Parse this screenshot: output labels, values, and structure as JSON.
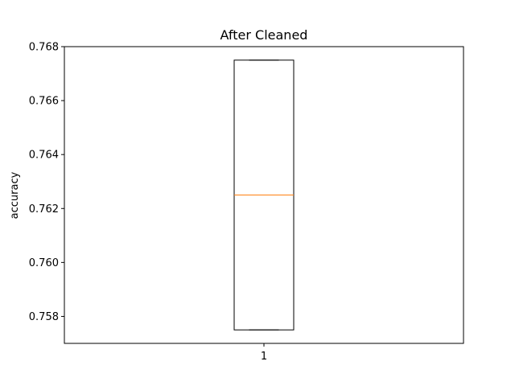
{
  "chart_data": {
    "type": "box",
    "title": "After Cleaned",
    "xlabel": "",
    "ylabel": "accuracy",
    "categories": [
      "1"
    ],
    "boxes": [
      {
        "category": "1",
        "whisker_low": 0.7575,
        "q1": 0.7575,
        "median": 0.7625,
        "q3": 0.7675,
        "whisker_high": 0.7675
      }
    ],
    "ylim": [
      0.757,
      0.768
    ],
    "yticks": [
      0.758,
      0.76,
      0.762,
      0.764,
      0.766,
      0.768
    ],
    "ytick_labels": [
      "0.758",
      "0.760",
      "0.762",
      "0.764",
      "0.766",
      "0.768"
    ],
    "grid": false,
    "colors": {
      "box": "#000000",
      "median": "#ff7f0e"
    }
  }
}
